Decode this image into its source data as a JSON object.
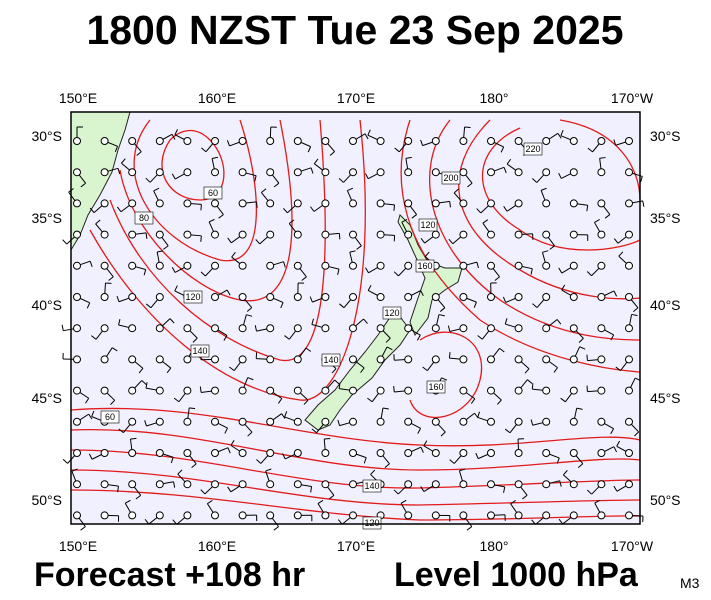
{
  "title": "1800 NZST Tue 23 Sep 2025",
  "map": {
    "lon_labels": [
      "150°E",
      "160°E",
      "170°E",
      "180°",
      "170°W"
    ],
    "lat_labels": [
      "30°S",
      "35°S",
      "40°S",
      "45°S",
      "50°S"
    ],
    "contour_labels": [
      220,
      200,
      60,
      80,
      120,
      140,
      120,
      160,
      120,
      140,
      160,
      60,
      140,
      120
    ]
  },
  "footer": {
    "forecast": "Forecast +108 hr",
    "level": "Level 1000 hPa",
    "model": "M3"
  }
}
